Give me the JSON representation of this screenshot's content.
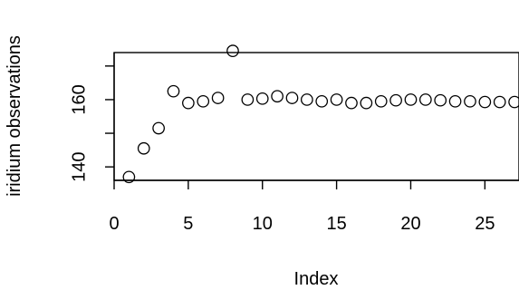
{
  "chart_data": {
    "type": "scatter",
    "title": "",
    "xlabel": "Index",
    "ylabel": "iridium observations",
    "x_ticks": [
      0,
      5,
      10,
      15,
      20,
      25
    ],
    "y_ticks": [
      140,
      160
    ],
    "xlim": [
      0,
      27.3
    ],
    "ylim": [
      136,
      174
    ],
    "grid": false,
    "legend": "none",
    "series": [
      {
        "x": [
          1,
          2,
          3,
          4,
          5,
          6,
          7,
          8,
          9,
          10,
          11,
          12,
          13,
          14,
          15,
          16,
          17,
          18,
          19,
          20,
          21,
          22,
          23,
          24,
          25,
          26,
          27
        ],
        "y": [
          137,
          145.5,
          151.5,
          162.5,
          159,
          159.5,
          160.5,
          174.5,
          160,
          160.3,
          161,
          160.5,
          160,
          159.5,
          160,
          159,
          159,
          159.5,
          159.8,
          160,
          160,
          159.8,
          159.5,
          159.5,
          159.3,
          159.3,
          159.3
        ]
      }
    ]
  }
}
